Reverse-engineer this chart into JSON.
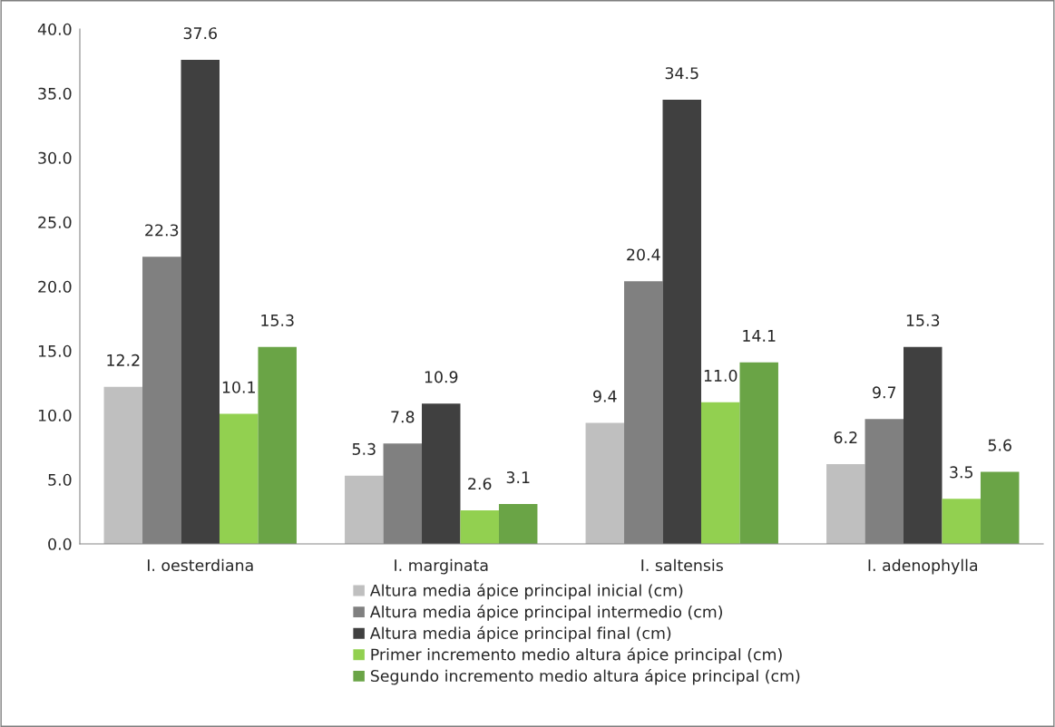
{
  "chart_data": {
    "type": "bar",
    "categories": [
      "I. oesterdiana",
      "I. marginata",
      "I. saltensis",
      "I. adenophylla"
    ],
    "series": [
      {
        "name": "Altura media ápice principal inicial (cm)",
        "color": "#bfbfbf",
        "values": [
          12.2,
          5.3,
          9.4,
          6.2
        ],
        "value_labels": [
          "12.2",
          "5.3",
          "9.4",
          "6.2"
        ]
      },
      {
        "name": "Altura media ápice principal intermedio (cm)",
        "color": "#808080",
        "values": [
          22.3,
          7.8,
          20.4,
          9.7
        ],
        "value_labels": [
          "22.3",
          "7.8",
          "20.4",
          "9.7"
        ]
      },
      {
        "name": "Altura media ápice principal final (cm)",
        "color": "#404040",
        "values": [
          37.6,
          10.9,
          34.5,
          15.3
        ],
        "value_labels": [
          "37.6",
          "10.9",
          "34.5",
          "15.3"
        ]
      },
      {
        "name": "Primer incremento medio altura ápice principal (cm)",
        "color": "#92d050",
        "values": [
          10.1,
          2.6,
          11.0,
          3.5
        ],
        "value_labels": [
          "10.1",
          "2.6",
          "11.0",
          "3.5"
        ]
      },
      {
        "name": "Segundo incremento medio altura ápice principal (cm)",
        "color": "#6aa446",
        "values": [
          15.3,
          3.1,
          14.1,
          5.6
        ],
        "value_labels": [
          "15.3",
          "3.1",
          "14.1",
          "5.6"
        ]
      }
    ],
    "ylim": [
      0,
      40
    ],
    "yticks": [
      {
        "value": 0,
        "label": "0.0"
      },
      {
        "value": 5,
        "label": "5.0"
      },
      {
        "value": 10,
        "label": "10.0"
      },
      {
        "value": 15,
        "label": "15.0"
      },
      {
        "value": 20,
        "label": "20.0"
      },
      {
        "value": 25,
        "label": "25.0"
      },
      {
        "value": 30,
        "label": "30.0"
      },
      {
        "value": 35,
        "label": "35.0"
      },
      {
        "value": 40,
        "label": "40.0"
      }
    ],
    "grid": false,
    "legend": "bottom"
  }
}
